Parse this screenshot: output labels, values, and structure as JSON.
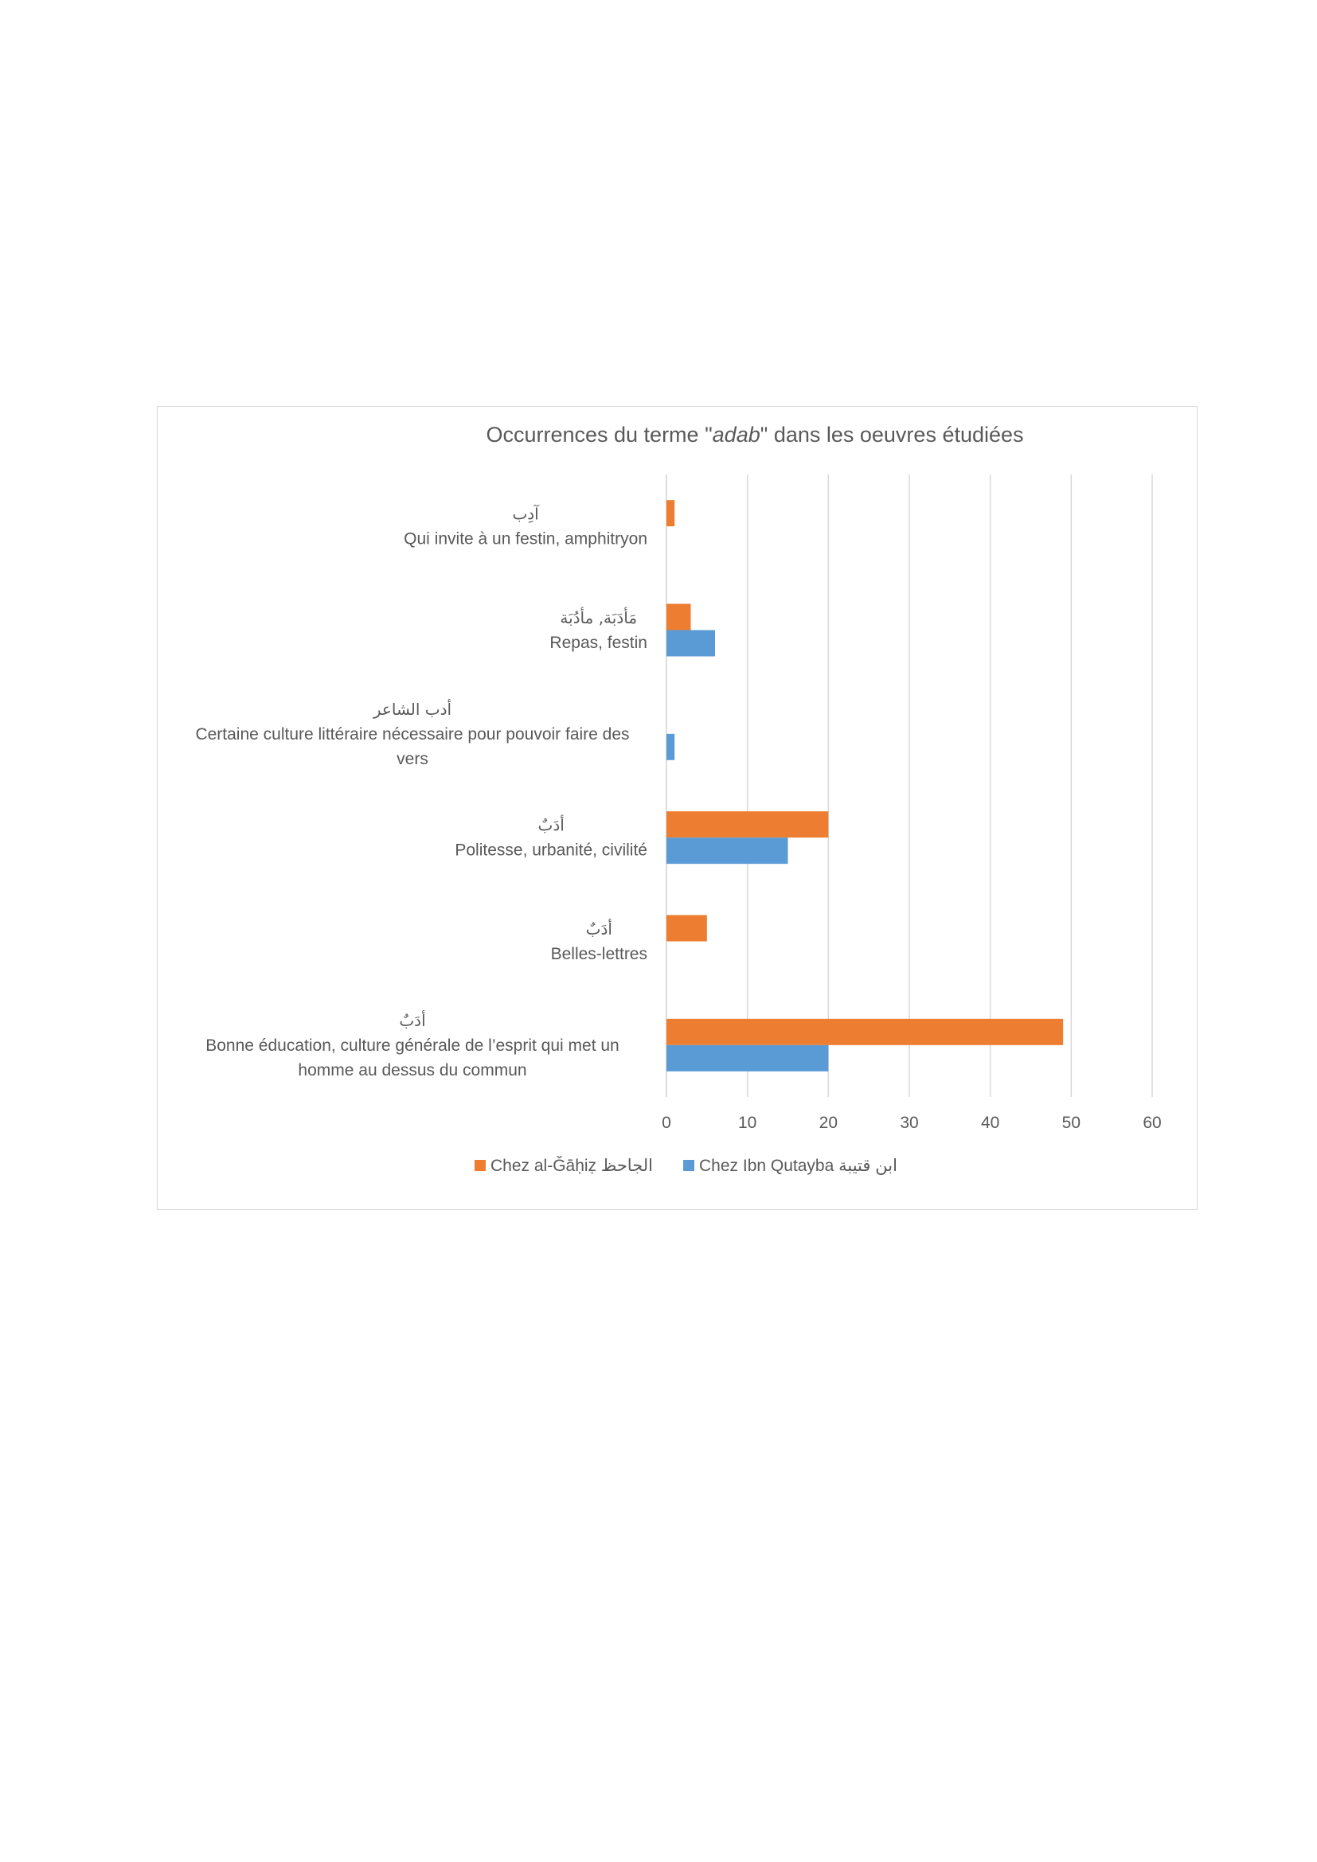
{
  "chart_data": {
    "type": "bar",
    "orientation": "horizontal",
    "title": {
      "before": "Occurrences du terme \"",
      "italic": "adab",
      "after": "\" dans les oeuvres étudiées"
    },
    "categories": [
      {
        "arabic": "آدِب",
        "lines": [
          "Qui invite à un festin, amphitryon"
        ]
      },
      {
        "arabic": "مَأدَبَة, مأدُبَة",
        "lines": [
          "Repas, festin"
        ]
      },
      {
        "arabic": "أدب الشاعر",
        "lines": [
          "Certaine culture littéraire nécessaire pour pouvoir faire des",
          "vers"
        ]
      },
      {
        "arabic": "أدَبٌ",
        "lines": [
          "Politesse, urbanité, civilité"
        ]
      },
      {
        "arabic": "أدَبٌ",
        "lines": [
          "Belles-lettres"
        ]
      },
      {
        "arabic": "أدَبٌ",
        "lines": [
          "Bonne éducation, culture générale de l’esprit qui met un",
          "homme au dessus du commun"
        ]
      }
    ],
    "series": [
      {
        "name": "Chez al-Ǧāḥiẓ الجاحظ",
        "color": "#ED7D31",
        "values": [
          1,
          3,
          0,
          20,
          5,
          49
        ]
      },
      {
        "name": "Chez Ibn Qutayba ابن قتيبة",
        "color": "#5B9BD5",
        "values": [
          0,
          6,
          1,
          15,
          0,
          20
        ]
      }
    ],
    "xlim": [
      0,
      60
    ],
    "xticks": [
      0,
      10,
      20,
      30,
      40,
      50,
      60
    ],
    "grid": true,
    "legend": "bottom"
  }
}
